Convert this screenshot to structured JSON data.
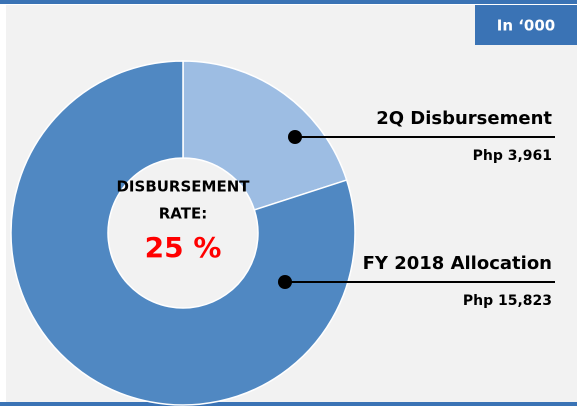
{
  "chart_data": {
    "type": "donut",
    "unit_note": "In ‘000",
    "categories": [
      "2Q Disbursement",
      "FY 2018 Allocation"
    ],
    "values": [
      3961,
      15823
    ],
    "value_labels": [
      "Php 3,961",
      "Php 15,823"
    ],
    "colors": [
      "#9dbde3",
      "#5088c2"
    ],
    "center_label_lines": [
      "DISBURSEMENT",
      "RATE:"
    ],
    "rate": {
      "value": 25,
      "label": "25 %"
    }
  }
}
